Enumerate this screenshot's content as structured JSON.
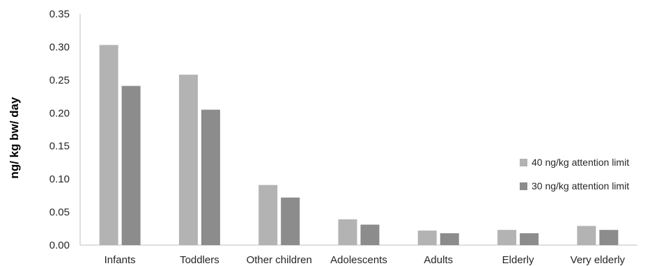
{
  "chart_data": {
    "type": "bar",
    "categories": [
      "Infants",
      "Toddlers",
      "Other children",
      "Adolescents",
      "Adults",
      "Elderly",
      "Very elderly"
    ],
    "series": [
      {
        "name": "40 ng/kg attention limit",
        "color": "#b3b3b3",
        "values": [
          0.303,
          0.258,
          0.091,
          0.039,
          0.022,
          0.023,
          0.029
        ]
      },
      {
        "name": "30 ng/kg attention limit",
        "color": "#8c8c8c",
        "values": [
          0.241,
          0.205,
          0.072,
          0.031,
          0.018,
          0.018,
          0.023
        ]
      }
    ],
    "ylabel": "ng/ kg bw/ day",
    "xlabel": "",
    "ylim": [
      0,
      0.35
    ],
    "yticks": [
      "0.00",
      "0.05",
      "0.10",
      "0.15",
      "0.20",
      "0.25",
      "0.30",
      "0.35"
    ],
    "grid": false,
    "legend_position": "right"
  }
}
